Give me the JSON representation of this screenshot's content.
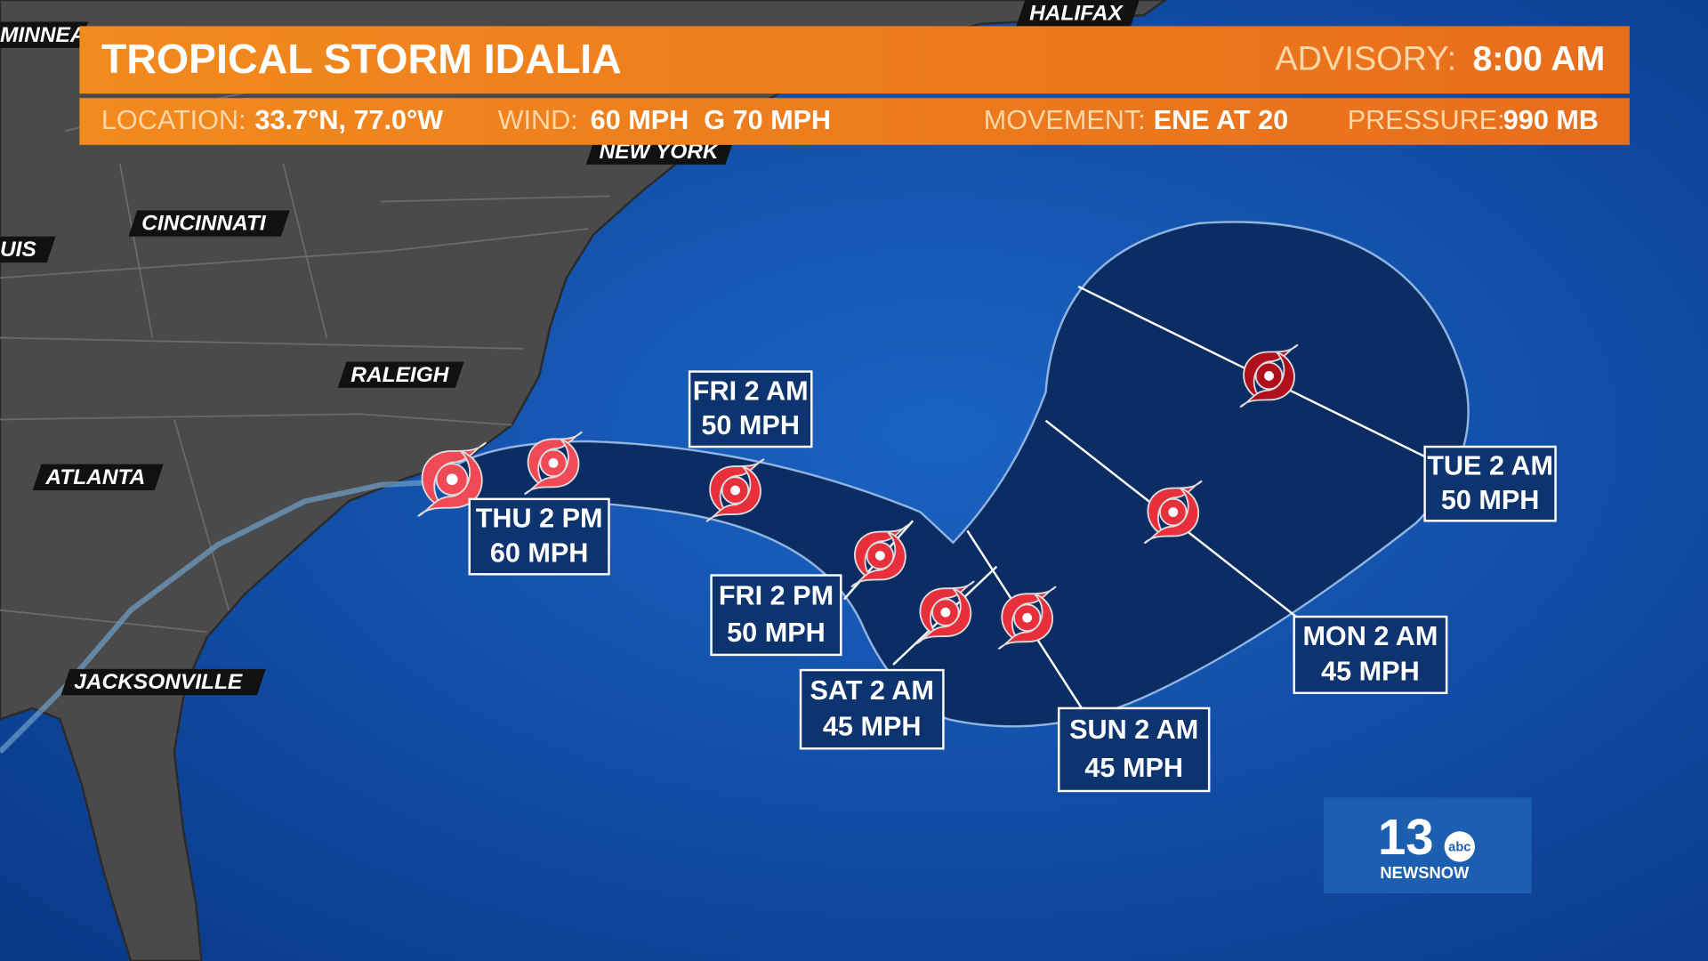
{
  "header": {
    "title": "TROPICAL STORM IDALIA",
    "advisory_label": "ADVISORY:",
    "advisory_time": "8:00 AM"
  },
  "info": [
    {
      "label": "LOCATION:",
      "value": "33.7°N, 77.0°W"
    },
    {
      "label": "WIND:",
      "value": "60 MPH  G 70 MPH"
    },
    {
      "label": "MOVEMENT:",
      "value": "ENE AT 20"
    },
    {
      "label": "PRESSURE:",
      "value": "990 MB"
    }
  ],
  "cities": [
    "MINNEA",
    "HALIFAX",
    "NEW YORK",
    "CINCINNATI",
    "UIS",
    "RALEIGH",
    "ATLANTA",
    "JACKSONVILLE"
  ],
  "forecast": [
    {
      "time": "THU 2 PM",
      "wind": "60 MPH"
    },
    {
      "time": "FRI 2 AM",
      "wind": "50 MPH"
    },
    {
      "time": "FRI 2 PM",
      "wind": "50 MPH"
    },
    {
      "time": "SAT 2 AM",
      "wind": "45 MPH"
    },
    {
      "time": "SUN 2 AM",
      "wind": "45 MPH"
    },
    {
      "time": "MON 2 AM",
      "wind": "45 MPH"
    },
    {
      "time": "TUE 2 AM",
      "wind": "50 MPH"
    }
  ],
  "logo": {
    "number": "13",
    "network": "abc",
    "brand": "NEWSNOW"
  }
}
